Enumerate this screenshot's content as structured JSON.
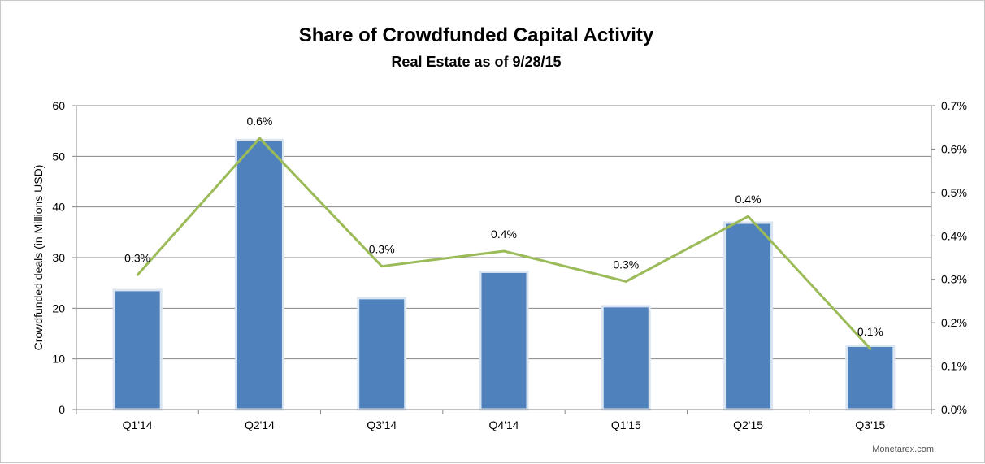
{
  "chart_data": {
    "type": "bar",
    "title": "Share of Crowdfunded Capital Activity",
    "subtitle": "Real Estate as of 9/28/15",
    "categories": [
      "Q1'14",
      "Q2'14",
      "Q3'14",
      "Q4'14",
      "Q1'15",
      "Q2'15",
      "Q3'15"
    ],
    "series": [
      {
        "type": "bar",
        "axis": "left",
        "values": [
          23.6,
          53.2,
          22.0,
          27.2,
          20.4,
          36.9,
          12.6
        ]
      },
      {
        "type": "line",
        "axis": "right",
        "values": [
          0.31,
          0.625,
          0.33,
          0.365,
          0.295,
          0.445,
          0.14
        ],
        "data_labels": [
          "0.3%",
          "0.6%",
          "0.3%",
          "0.4%",
          "0.3%",
          "0.4%",
          "0.1%"
        ]
      }
    ],
    "ylabel": "Crowdfunded deals (in Millions USD)",
    "ylim": [
      0,
      60
    ],
    "yticks": [
      "0",
      "10",
      "20",
      "30",
      "40",
      "50",
      "60"
    ],
    "y2lim": [
      0,
      0.7
    ],
    "y2ticks": [
      "0.0%",
      "0.1%",
      "0.2%",
      "0.3%",
      "0.4%",
      "0.5%",
      "0.6%",
      "0.7%"
    ],
    "grid": true,
    "legend": "none",
    "colors": {
      "bar": "#4f81bd",
      "bar_border": "#dbe5f1",
      "line": "#9bbb59",
      "grid": "#868686"
    }
  },
  "footer": {
    "source": "Monetarex.com"
  }
}
